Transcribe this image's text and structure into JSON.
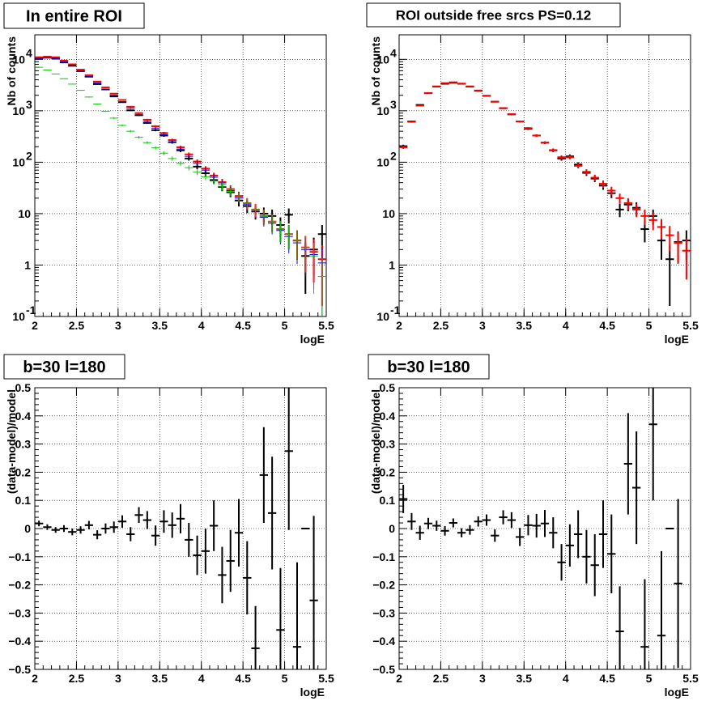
{
  "chart_data": [
    {
      "type": "scatter",
      "title": "In entire ROI",
      "xlabel": "logE",
      "ylabel": "Nb of counts",
      "xlim": [
        2,
        5.5
      ],
      "ylim": [
        0.1,
        30000
      ],
      "yscale": "log",
      "grid": true,
      "x_ticks": [
        "2",
        "2.5",
        "3",
        "3.5",
        "4",
        "4.5",
        "5",
        "5.5"
      ],
      "y_ticks": [
        "10^-1",
        "1",
        "10",
        "10^2",
        "10^3",
        "10^4"
      ],
      "colors": {
        "data": "#000000",
        "model": "#ff0000",
        "model_blue": "#0000ff",
        "model_green": "#00cc00"
      },
      "series": [
        {
          "color": "#000000",
          "x": [
            2.05,
            2.15,
            2.25,
            2.35,
            2.45,
            2.55,
            2.65,
            2.75,
            2.85,
            2.95,
            3.05,
            3.15,
            3.25,
            3.35,
            3.45,
            3.55,
            3.65,
            3.75,
            3.85,
            3.95,
            4.05,
            4.15,
            4.25,
            4.35,
            4.45,
            4.55,
            4.65,
            4.75,
            4.85,
            4.95,
            5.05,
            5.15,
            5.25,
            5.35,
            5.45
          ],
          "y": [
            10500,
            10800,
            10300,
            8700,
            7500,
            5900,
            4600,
            3300,
            2600,
            1900,
            1470,
            1020,
            820,
            580,
            420,
            330,
            245,
            170,
            118,
            82,
            61,
            45,
            33,
            26,
            18,
            14,
            11,
            10,
            9,
            6,
            9.5,
            3,
            1.5,
            2,
            4
          ]
        },
        {
          "color": "#ff0000",
          "x": [
            2.05,
            2.15,
            2.25,
            2.35,
            2.45,
            2.55,
            2.65,
            2.75,
            2.85,
            2.95,
            3.05,
            3.15,
            3.25,
            3.35,
            3.45,
            3.55,
            3.65,
            3.75,
            3.85,
            3.95,
            4.05,
            4.15,
            4.25,
            4.35,
            4.45,
            4.55,
            4.65,
            4.75,
            4.85,
            4.95,
            5.05,
            5.15,
            5.25,
            5.35,
            5.45
          ],
          "y": [
            11000,
            11300,
            11000,
            9400,
            8000,
            6300,
            4900,
            3700,
            2850,
            2150,
            1620,
            1200,
            900,
            670,
            500,
            370,
            270,
            195,
            142,
            103,
            75,
            55,
            41,
            30,
            22,
            16,
            12,
            9,
            7,
            5,
            4,
            3,
            2.2,
            1.8,
            1.3
          ]
        },
        {
          "color": "#0000ff",
          "x": [
            2.05,
            2.15,
            2.25,
            2.35,
            2.45,
            2.55,
            2.65,
            2.75,
            2.85,
            2.95,
            3.05,
            3.15,
            3.25,
            3.35,
            3.45,
            3.55,
            3.65,
            3.75,
            3.85,
            3.95,
            4.05,
            4.15,
            4.25,
            4.35,
            4.45,
            4.55,
            4.65,
            4.75,
            4.85,
            4.95,
            5.05,
            5.15,
            5.25,
            5.35,
            5.45
          ],
          "y": [
            10400,
            10600,
            10200,
            8800,
            7400,
            5900,
            4600,
            3500,
            2650,
            2000,
            1500,
            1120,
            840,
            620,
            460,
            345,
            250,
            180,
            130,
            95,
            70,
            51,
            38,
            28,
            20,
            15,
            11,
            8.5,
            6.5,
            4.7,
            3.6,
            2.7,
            2,
            1.6,
            1.1
          ]
        },
        {
          "color": "#00cc00",
          "x": [
            2.05,
            2.15,
            2.25,
            2.35,
            2.45,
            2.55,
            2.65,
            2.75,
            2.85,
            2.95,
            3.05,
            3.15,
            3.25,
            3.35,
            3.45,
            3.55,
            3.65,
            3.75,
            3.85,
            3.95,
            4.05,
            4.15,
            4.25,
            4.35,
            4.45,
            4.55,
            4.65,
            4.75,
            4.85,
            4.95,
            5.05,
            5.15,
            5.25,
            5.35,
            5.45
          ],
          "y": [
            7000,
            6200,
            5200,
            4200,
            3300,
            2500,
            1850,
            1350,
            980,
            720,
            520,
            400,
            305,
            240,
            190,
            150,
            118,
            95,
            78,
            64,
            52,
            43,
            34,
            27,
            21,
            16,
            12,
            9,
            7,
            5,
            4,
            3,
            2.2,
            1.5,
            0.6
          ]
        }
      ]
    },
    {
      "type": "scatter",
      "title": "ROI outside free srcs PS=0.12",
      "xlabel": "logE",
      "ylabel": "Nb of counts",
      "xlim": [
        2,
        5.5
      ],
      "ylim": [
        0.1,
        30000
      ],
      "yscale": "log",
      "grid": true,
      "x_ticks": [
        "2",
        "2.5",
        "3",
        "3.5",
        "4",
        "4.5",
        "5",
        "5.5"
      ],
      "y_ticks": [
        "10^-1",
        "1",
        "10",
        "10^2",
        "10^3",
        "10^4"
      ],
      "series": [
        {
          "color": "#000000",
          "x": [
            2.05,
            2.15,
            2.25,
            2.35,
            2.45,
            2.55,
            2.65,
            2.75,
            2.85,
            2.95,
            3.05,
            3.15,
            3.25,
            3.35,
            3.45,
            3.55,
            3.65,
            3.75,
            3.85,
            3.95,
            4.05,
            4.15,
            4.25,
            4.35,
            4.45,
            4.55,
            4.65,
            4.75,
            4.85,
            4.95,
            5.05,
            5.15,
            5.25,
            5.35,
            5.45
          ],
          "y": [
            205,
            620,
            1300,
            2200,
            2950,
            3350,
            3500,
            3350,
            2950,
            2450,
            1950,
            1500,
            1120,
            850,
            620,
            445,
            330,
            240,
            170,
            118,
            130,
            90,
            62,
            48,
            35,
            25,
            12,
            15,
            13,
            5,
            9,
            3,
            1.3,
            2.8,
            3
          ]
        },
        {
          "color": "#ff0000",
          "x": [
            2.05,
            2.15,
            2.25,
            2.35,
            2.45,
            2.55,
            2.65,
            2.75,
            2.85,
            2.95,
            3.05,
            3.15,
            3.25,
            3.35,
            3.45,
            3.55,
            3.65,
            3.75,
            3.85,
            3.95,
            4.05,
            4.15,
            4.25,
            4.35,
            4.45,
            4.55,
            4.65,
            4.75,
            4.85,
            4.95,
            5.05,
            5.15,
            5.25,
            5.35,
            5.45
          ],
          "y": [
            195,
            610,
            1260,
            2200,
            2980,
            3450,
            3580,
            3380,
            2980,
            2480,
            1960,
            1500,
            1130,
            860,
            620,
            460,
            330,
            240,
            172,
            125,
            125,
            85,
            65,
            50,
            38,
            28,
            20,
            16,
            12,
            9,
            7.5,
            5.5,
            3.8,
            2.7,
            1.9
          ]
        }
      ]
    },
    {
      "type": "scatter",
      "title": "b=30 l=180",
      "xlabel": "logE",
      "ylabel": "(data-model)/model",
      "xlim": [
        2,
        5.5
      ],
      "ylim": [
        -0.5,
        0.5
      ],
      "grid": true,
      "x_ticks": [
        "2",
        "2.5",
        "3",
        "3.5",
        "4",
        "4.5",
        "5",
        "5.5"
      ],
      "y_ticks": [
        "−0.5",
        "−0.4",
        "−0.3",
        "−0.2",
        "−0.1",
        "0",
        "0.1",
        "0.2",
        "0.3",
        "0.4",
        "0.5"
      ],
      "series": [
        {
          "color": "#000000",
          "x": [
            2.05,
            2.15,
            2.25,
            2.35,
            2.45,
            2.55,
            2.65,
            2.75,
            2.85,
            2.95,
            3.05,
            3.15,
            3.25,
            3.35,
            3.45,
            3.55,
            3.65,
            3.75,
            3.85,
            3.95,
            4.05,
            4.15,
            4.25,
            4.35,
            4.45,
            4.55,
            4.65,
            4.75,
            4.85,
            4.95,
            5.05,
            5.15,
            5.25,
            5.35
          ],
          "y": [
            0.018,
            0.005,
            -0.005,
            0.0,
            -0.012,
            -0.005,
            0.012,
            -0.022,
            0.0,
            0.005,
            0.025,
            -0.02,
            0.048,
            0.03,
            -0.025,
            0.025,
            0.012,
            0.035,
            -0.04,
            -0.095,
            -0.08,
            0.01,
            -0.165,
            -0.115,
            -0.015,
            -0.175,
            -0.425,
            0.19,
            0.055,
            -0.36,
            0.275,
            -0.42,
            0.0,
            -0.255
          ],
          "err": [
            0.01,
            0.01,
            0.01,
            0.012,
            0.012,
            0.013,
            0.015,
            0.016,
            0.018,
            0.02,
            0.022,
            0.025,
            0.028,
            0.032,
            0.036,
            0.04,
            0.045,
            0.052,
            0.06,
            0.07,
            0.08,
            0.09,
            0.1,
            0.11,
            0.12,
            0.13,
            0.15,
            0.17,
            0.2,
            0.22,
            0.28,
            0.3,
            0.0,
            0.3
          ]
        }
      ]
    },
    {
      "type": "scatter",
      "title": "b=30 l=180",
      "xlabel": "logE",
      "ylabel": "(data-model)/model",
      "xlim": [
        2,
        5.5
      ],
      "ylim": [
        -0.5,
        0.5
      ],
      "grid": true,
      "x_ticks": [
        "2",
        "2.5",
        "3",
        "3.5",
        "4",
        "4.5",
        "5",
        "5.5"
      ],
      "y_ticks": [
        "−0.5",
        "−0.4",
        "−0.3",
        "−0.2",
        "−0.1",
        "0",
        "0.1",
        "0.2",
        "0.3",
        "0.4",
        "0.5"
      ],
      "series": [
        {
          "color": "#000000",
          "x": [
            2.05,
            2.15,
            2.25,
            2.35,
            2.45,
            2.55,
            2.65,
            2.75,
            2.85,
            2.95,
            3.05,
            3.15,
            3.25,
            3.35,
            3.45,
            3.55,
            3.65,
            3.75,
            3.85,
            3.95,
            4.05,
            4.15,
            4.25,
            4.35,
            4.45,
            4.55,
            4.65,
            4.75,
            4.85,
            4.95,
            5.05,
            5.15,
            5.25,
            5.35
          ],
          "y": [
            0.105,
            0.025,
            -0.015,
            0.018,
            0.01,
            -0.008,
            0.02,
            -0.015,
            -0.005,
            0.025,
            0.03,
            -0.025,
            0.04,
            0.03,
            -0.03,
            0.012,
            0.01,
            0.018,
            -0.015,
            -0.12,
            -0.06,
            -0.02,
            -0.1,
            -0.13,
            -0.02,
            -0.09,
            -0.365,
            0.23,
            0.145,
            -0.42,
            0.37,
            -0.38,
            0.0,
            -0.195
          ],
          "err": [
            0.05,
            0.03,
            0.025,
            0.02,
            0.018,
            0.017,
            0.016,
            0.016,
            0.017,
            0.018,
            0.02,
            0.022,
            0.025,
            0.028,
            0.032,
            0.036,
            0.042,
            0.048,
            0.055,
            0.065,
            0.075,
            0.085,
            0.095,
            0.11,
            0.12,
            0.14,
            0.16,
            0.18,
            0.2,
            0.24,
            0.27,
            0.3,
            0.0,
            0.3
          ]
        }
      ]
    }
  ]
}
